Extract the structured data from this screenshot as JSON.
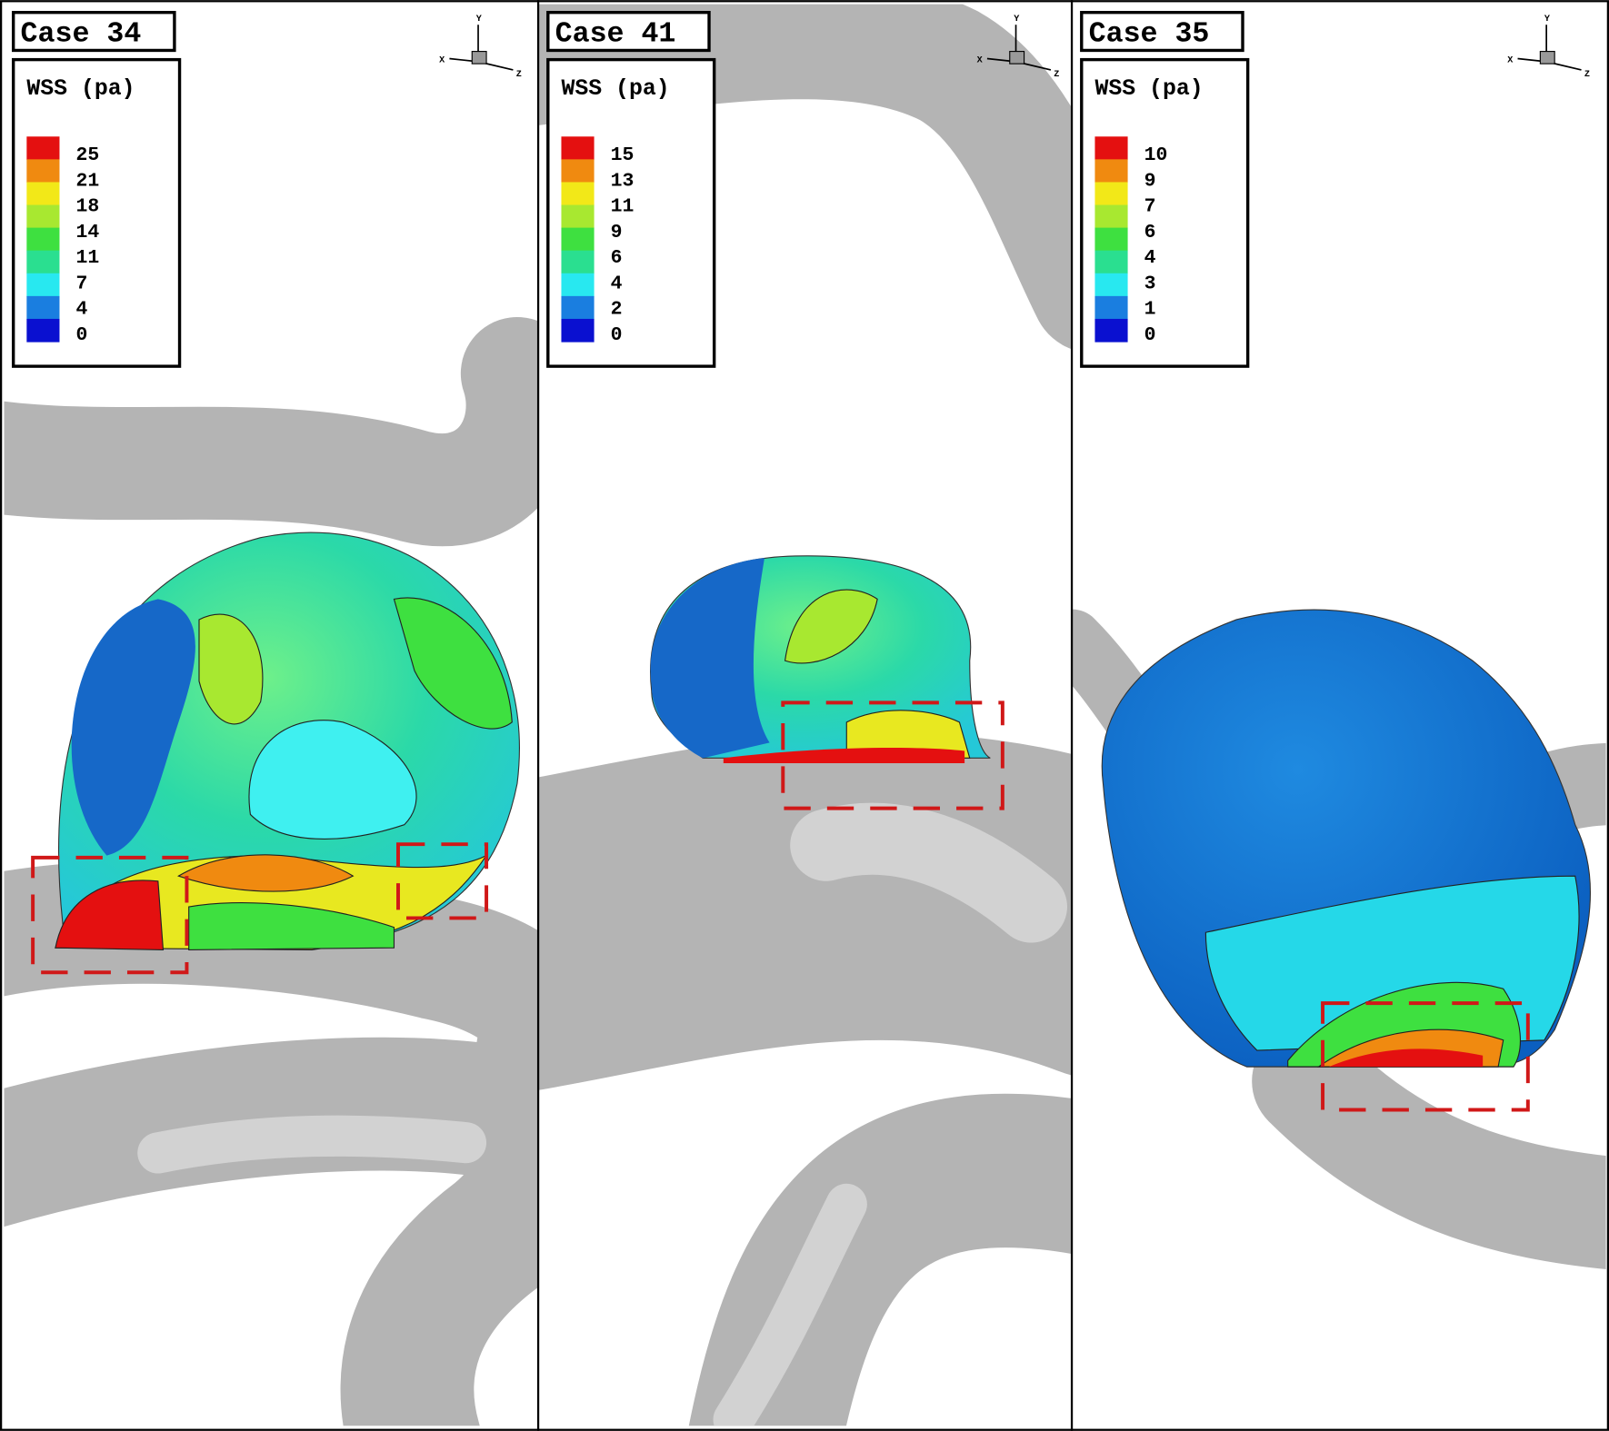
{
  "panels": [
    {
      "title": "Case 34",
      "legend": {
        "title": "WSS (pa)",
        "levels": [
          25,
          21,
          18,
          14,
          11,
          7,
          4,
          0
        ]
      },
      "axes": {
        "x": "X",
        "y": "Y",
        "z": "Z"
      }
    },
    {
      "title": "Case 41",
      "legend": {
        "title": "WSS (pa)",
        "levels": [
          15,
          13,
          11,
          9,
          6,
          4,
          2,
          0
        ]
      },
      "axes": {
        "x": "X",
        "y": "Y",
        "z": "Z"
      }
    },
    {
      "title": "Case 35",
      "legend": {
        "title": "WSS (pa)",
        "levels": [
          10,
          9,
          7,
          6,
          4,
          3,
          1,
          0
        ]
      },
      "axes": {
        "x": "X",
        "y": "Y",
        "z": "Z"
      }
    }
  ]
}
